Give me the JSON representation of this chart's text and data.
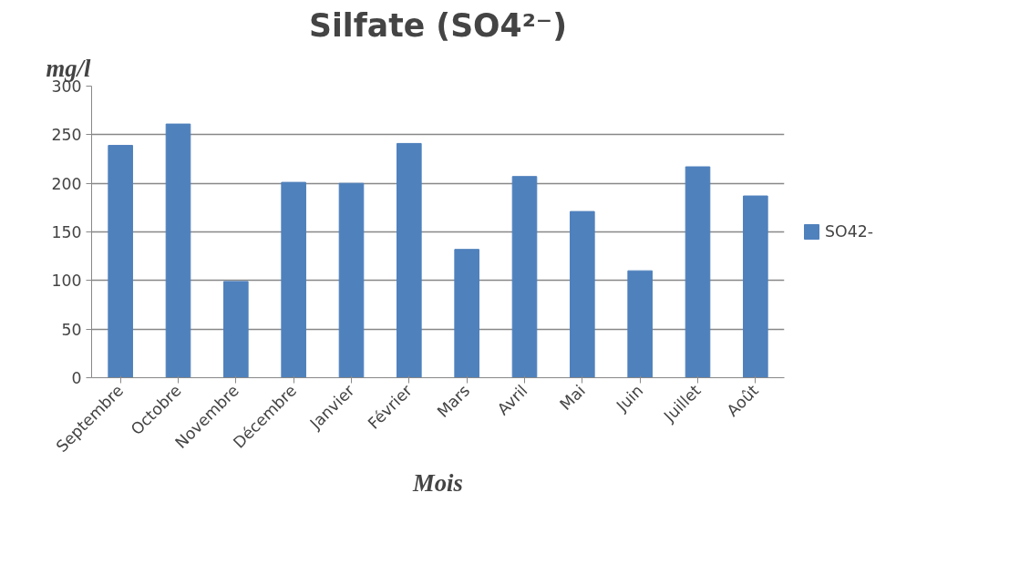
{
  "chart_data": {
    "type": "bar",
    "title": "Silfate (SO4²⁻)",
    "xlabel": "Mois",
    "ylabel": "mg/l",
    "categories": [
      "Septembre",
      "Octobre",
      "Novembre",
      "Décembre",
      "Janvier",
      "Février",
      "Mars",
      "Avril",
      "Mai",
      "Juin",
      "Juillet",
      "Août"
    ],
    "series": [
      {
        "name": "SO42-",
        "color": "#4f81bd",
        "values": [
          239,
          261,
          99,
          201,
          200,
          241,
          132,
          207,
          171,
          110,
          217,
          187
        ]
      }
    ],
    "ylim": [
      0,
      300
    ],
    "yticks": [
      0,
      50,
      100,
      150,
      200,
      250,
      300
    ],
    "grid": "y",
    "legend": "right"
  }
}
